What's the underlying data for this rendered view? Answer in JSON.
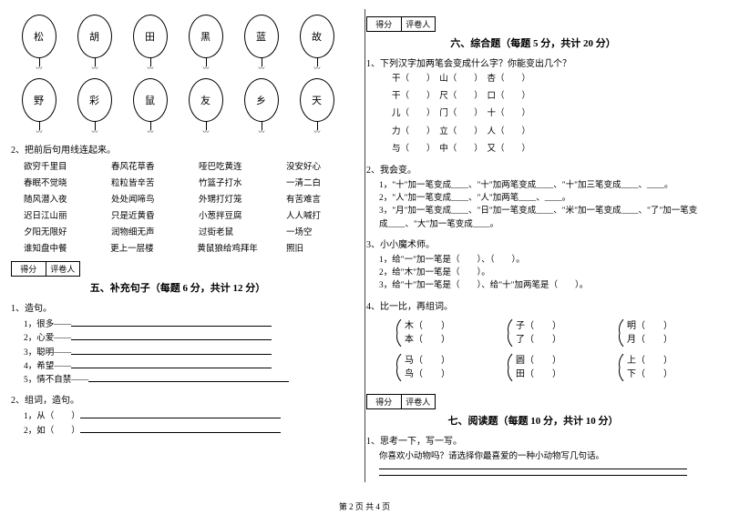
{
  "balloons_row1": [
    "松",
    "胡",
    "田",
    "黑",
    "蓝",
    "故"
  ],
  "balloons_row2": [
    "野",
    "彩",
    "鼠",
    "友",
    "乡",
    "天"
  ],
  "q2_title": "2、把前后句用线连起来。",
  "word_rows": [
    [
      "欲穷千里目",
      "春风花草香",
      "哑巴吃黄连",
      "没安好心"
    ],
    [
      "春眠不觉晓",
      "粒粒皆辛苦",
      "竹篮子打水",
      "一清二白"
    ],
    [
      "随风潜入夜",
      "处处闻啼鸟",
      "外甥打灯笼",
      "有苦难言"
    ],
    [
      "迟日江山丽",
      "只是近黄昏",
      "小葱拌豆腐",
      "人人喊打"
    ],
    [
      "夕阳无限好",
      "润物细无声",
      "过街老鼠",
      "一场空"
    ],
    [
      "谁知盘中餐",
      "更上一层楼",
      "黄鼠狼给鸡拜年",
      "照旧"
    ]
  ],
  "score_labels": {
    "col1": "得分",
    "col2": "评卷人"
  },
  "section5_title": "五、补充句子（每题 6 分，共计 12 分）",
  "s5_q1": "1、造句。",
  "s5_items": [
    "1，很多——",
    "2，心爱——",
    "3，聪明——",
    "4，希望——",
    "5，情不自禁——"
  ],
  "s5_q2": "2、组词，造句。",
  "s5_q2_items": [
    "1，从（　　）",
    "2，如（　　）"
  ],
  "section6_title": "六、综合题（每题 5 分，共计 20 分）",
  "s6_q1": "1、下列汉字加两笔会变成什么字？你能变出几个？",
  "s6_chars": [
    [
      "干（",
      "）　山（",
      "）　杏（",
      "）"
    ],
    [
      "干（",
      "）　尺（",
      "）　口（",
      "）"
    ],
    [
      "儿（",
      "）　门（",
      "）　十（",
      "）"
    ],
    [
      "力（",
      "）　立（",
      "）　人（",
      "）"
    ],
    [
      "与（",
      "）　中（",
      "）　又（",
      "）"
    ]
  ],
  "s6_q2": "2、我会变。",
  "s6_q2_lines": [
    "1，\"十\"加一笔变成____、\"十\"加两笔变成____、\"十\"加三笔变成____、____。",
    "2，\"人\"加一笔变成____、\"人\"加两笔____、____。",
    "3，\"月\"加一笔变成____、\"日\"加一笔变成____、\"米\"加一笔变成____、\"了\"加一笔变成____、\"大\"加一笔变成____。"
  ],
  "s6_q3": "3、小小魔术师。",
  "s6_q3_lines": [
    "1，给\"一\"加一笔是（　　）、（　　）。",
    "2，给\"木\"加一笔是（　　）。",
    "3，给\"十\"加一笔是（　　）、给\"十\"加两笔是（　　）。"
  ],
  "s6_q4": "4、比一比，再组词。",
  "pairs1": [
    {
      "a": "木（　　）",
      "b": "本（　　）"
    },
    {
      "a": "子（　　）",
      "b": "了（　　）"
    },
    {
      "a": "明（　　）",
      "b": "月（　　）"
    }
  ],
  "pairs2": [
    {
      "a": "马（　　）",
      "b": "鸟（　　）"
    },
    {
      "a": "圆（　　）",
      "b": "田（　　）"
    },
    {
      "a": "上（　　）",
      "b": "下（　　）"
    }
  ],
  "section7_title": "七、阅读题（每题 10 分，共计 10 分）",
  "s7_q1": "1、思考一下，写一写。",
  "s7_text": "你喜欢小动物吗？请选择你最喜爱的一种小动物写几句话。",
  "footer": "第 2 页 共 4 页"
}
